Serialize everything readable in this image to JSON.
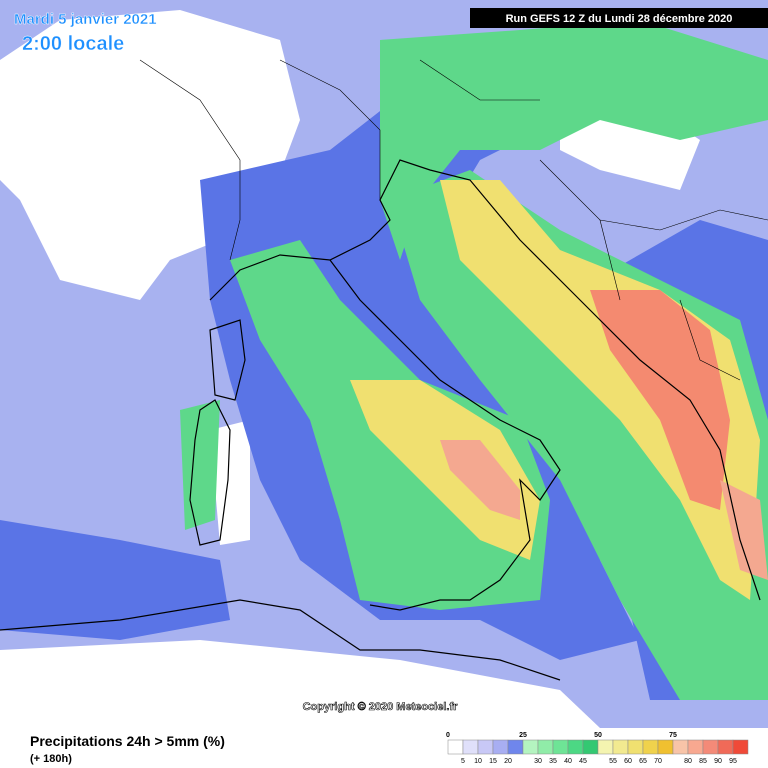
{
  "header": {
    "date": "Mardi 5 janvier 2021",
    "time": "2:00 locale",
    "run": "Run GEFS 12 Z du Lundi 28 décembre 2020"
  },
  "copyright": "Copyright © 2020 Meteociel.fr",
  "footer": {
    "title": "Precipitations 24h > 5mm (%)",
    "lead": "(+ 180h)"
  },
  "legend": {
    "top_labels": [
      0,
      25,
      50,
      75
    ],
    "bottom_labels": [
      5,
      10,
      15,
      20,
      30,
      35,
      40,
      45,
      55,
      60,
      65,
      70,
      80,
      85,
      90,
      95
    ],
    "colors": [
      "#ffffff",
      "#e0e0fa",
      "#c8c8f6",
      "#a8aef2",
      "#6f86ec",
      "#b4f4c0",
      "#90eca8",
      "#6ee496",
      "#4cd884",
      "#34c872",
      "#f4f4b0",
      "#f2ea90",
      "#f0e070",
      "#f0d24c",
      "#f0c030",
      "#f8c4a8",
      "#f8a890",
      "#f48a78",
      "#f06a58",
      "#f04a38"
    ]
  }
}
